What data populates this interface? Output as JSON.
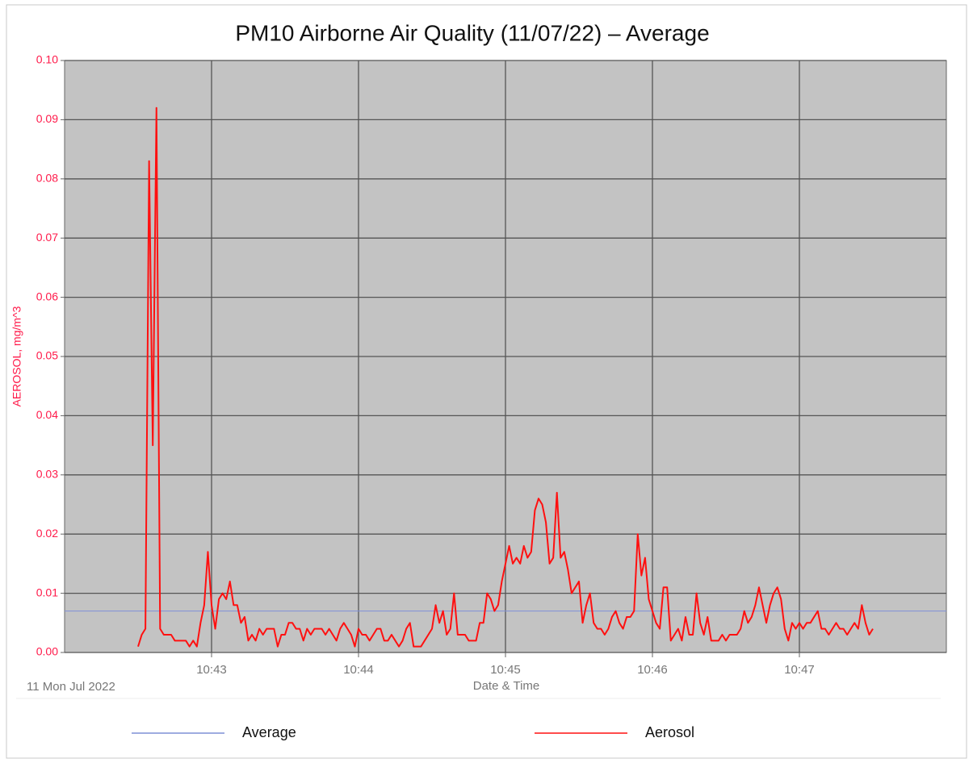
{
  "chart_data": {
    "type": "line",
    "title": "PM10 Airborne Air Quality (11/07/22) – Average",
    "y_label": "AEROSOL, mg/m^3",
    "x_label": "Date & Time",
    "date_label": "11 Mon Jul 2022",
    "xlim": [
      642,
      648
    ],
    "xticks": [
      {
        "value": 643,
        "label": "10:43"
      },
      {
        "value": 644,
        "label": "10:44"
      },
      {
        "value": 645,
        "label": "10:45"
      },
      {
        "value": 646,
        "label": "10:46"
      },
      {
        "value": 647,
        "label": "10:47"
      }
    ],
    "ylim": [
      0,
      0.1
    ],
    "yticks": [
      {
        "value": 0,
        "label": "0.00"
      },
      0.01,
      0.02,
      0.03,
      0.04,
      0.05,
      0.06,
      0.07,
      0.08,
      0.09,
      {
        "value": 0.1,
        "label": "0.10"
      }
    ],
    "grid": true,
    "legend": "bottom",
    "series": [
      {
        "name": "Average",
        "color": "#7f8fd6",
        "x": [
          642,
          648
        ],
        "values": [
          0.007,
          0.007
        ]
      },
      {
        "name": "Aerosol",
        "color": "#ff1010",
        "x": [
          642.5,
          642.525,
          642.55,
          642.575,
          642.6,
          642.625,
          642.65,
          642.675,
          642.7,
          642.725,
          642.75,
          642.775,
          642.8,
          642.825,
          642.85,
          642.875,
          642.9,
          642.925,
          642.95,
          642.975,
          643,
          643.025,
          643.05,
          643.075,
          643.1,
          643.125,
          643.15,
          643.175,
          643.2,
          643.225,
          643.25,
          643.275,
          643.3,
          643.325,
          643.35,
          643.375,
          643.4,
          643.425,
          643.45,
          643.475,
          643.5,
          643.525,
          643.55,
          643.575,
          643.6,
          643.625,
          643.65,
          643.675,
          643.7,
          643.725,
          643.75,
          643.775,
          643.8,
          643.825,
          643.85,
          643.875,
          643.9,
          643.925,
          643.95,
          643.975,
          644,
          644.025,
          644.05,
          644.075,
          644.1,
          644.125,
          644.15,
          644.175,
          644.2,
          644.225,
          644.25,
          644.275,
          644.3,
          644.325,
          644.35,
          644.375,
          644.4,
          644.425,
          644.45,
          644.475,
          644.5,
          644.525,
          644.55,
          644.575,
          644.6,
          644.625,
          644.65,
          644.675,
          644.7,
          644.725,
          644.75,
          644.775,
          644.8,
          644.825,
          644.85,
          644.875,
          644.9,
          644.925,
          644.95,
          644.975,
          645,
          645.025,
          645.05,
          645.075,
          645.1,
          645.125,
          645.15,
          645.175,
          645.2,
          645.225,
          645.25,
          645.275,
          645.3,
          645.325,
          645.35,
          645.375,
          645.4,
          645.425,
          645.45,
          645.475,
          645.5,
          645.525,
          645.55,
          645.575,
          645.6,
          645.625,
          645.65,
          645.675,
          645.7,
          645.725,
          645.75,
          645.775,
          645.8,
          645.825,
          645.85,
          645.875,
          645.9,
          645.925,
          645.95,
          645.975,
          646,
          646.025,
          646.05,
          646.075,
          646.1,
          646.125,
          646.15,
          646.175,
          646.2,
          646.225,
          646.25,
          646.275,
          646.3,
          646.325,
          646.35,
          646.375,
          646.4,
          646.425,
          646.45,
          646.475,
          646.5,
          646.525,
          646.55,
          646.575,
          646.6,
          646.625,
          646.65,
          646.675,
          646.7,
          646.725,
          646.75,
          646.775,
          646.8,
          646.825,
          646.85,
          646.875,
          646.9,
          646.925,
          646.95,
          646.975,
          647,
          647.025,
          647.05,
          647.075,
          647.1,
          647.125,
          647.15,
          647.175,
          647.2,
          647.225,
          647.25,
          647.275,
          647.3,
          647.325,
          647.35,
          647.375,
          647.4,
          647.425,
          647.45,
          647.475,
          647.5
        ],
        "values": [
          0.001,
          0.003,
          0.004,
          0.083,
          0.035,
          0.092,
          0.004,
          0.003,
          0.003,
          0.003,
          0.002,
          0.002,
          0.002,
          0.002,
          0.001,
          0.002,
          0.001,
          0.005,
          0.008,
          0.017,
          0.008,
          0.004,
          0.009,
          0.01,
          0.009,
          0.012,
          0.008,
          0.008,
          0.005,
          0.006,
          0.002,
          0.003,
          0.002,
          0.004,
          0.003,
          0.004,
          0.004,
          0.004,
          0.001,
          0.003,
          0.003,
          0.005,
          0.005,
          0.004,
          0.004,
          0.002,
          0.004,
          0.003,
          0.004,
          0.004,
          0.004,
          0.003,
          0.004,
          0.003,
          0.002,
          0.004,
          0.005,
          0.004,
          0.003,
          0.001,
          0.004,
          0.003,
          0.003,
          0.002,
          0.003,
          0.004,
          0.004,
          0.002,
          0.002,
          0.003,
          0.002,
          0.001,
          0.002,
          0.004,
          0.005,
          0.001,
          0.001,
          0.001,
          0.002,
          0.003,
          0.004,
          0.008,
          0.005,
          0.007,
          0.003,
          0.004,
          0.01,
          0.003,
          0.003,
          0.003,
          0.002,
          0.002,
          0.002,
          0.005,
          0.005,
          0.01,
          0.009,
          0.007,
          0.008,
          0.012,
          0.015,
          0.018,
          0.015,
          0.016,
          0.015,
          0.018,
          0.016,
          0.017,
          0.024,
          0.026,
          0.025,
          0.022,
          0.015,
          0.016,
          0.027,
          0.016,
          0.017,
          0.014,
          0.01,
          0.011,
          0.012,
          0.005,
          0.008,
          0.01,
          0.005,
          0.004,
          0.004,
          0.003,
          0.004,
          0.006,
          0.007,
          0.005,
          0.004,
          0.006,
          0.006,
          0.007,
          0.02,
          0.013,
          0.016,
          0.009,
          0.007,
          0.005,
          0.004,
          0.011,
          0.011,
          0.002,
          0.003,
          0.004,
          0.002,
          0.006,
          0.003,
          0.003,
          0.01,
          0.005,
          0.003,
          0.006,
          0.002,
          0.002,
          0.002,
          0.003,
          0.002,
          0.003,
          0.003,
          0.003,
          0.004,
          0.007,
          0.005,
          0.006,
          0.008,
          0.011,
          0.008,
          0.005,
          0.008,
          0.01,
          0.011,
          0.009,
          0.004,
          0.002,
          0.005,
          0.004,
          0.005,
          0.004,
          0.005,
          0.005,
          0.006,
          0.007,
          0.004,
          0.004,
          0.003,
          0.004,
          0.005,
          0.004,
          0.004,
          0.003,
          0.004,
          0.005,
          0.004,
          0.008,
          0.005,
          0.003,
          0.004
        ]
      }
    ]
  }
}
